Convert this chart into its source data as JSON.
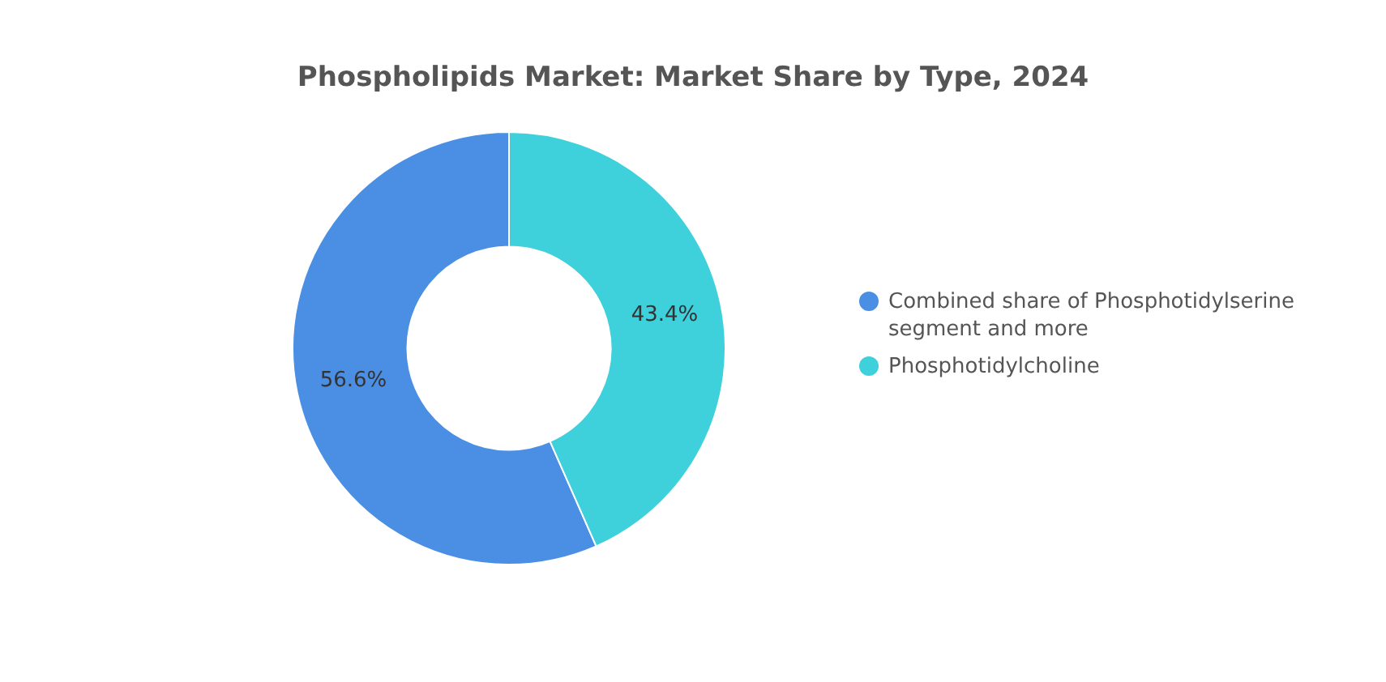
{
  "chart_data": {
    "type": "donut",
    "title": "Phospholipids Market: Market Share by Type, 2024",
    "categories": [
      "Combined share of Phosphotidylserine segment and more",
      "Phosphotidylcholine"
    ],
    "values": [
      56.6,
      43.4
    ],
    "colors": [
      "#4a8fe4",
      "#3ed0db"
    ],
    "value_labels": [
      "56.6%",
      "43.4%"
    ],
    "legend": "right"
  }
}
